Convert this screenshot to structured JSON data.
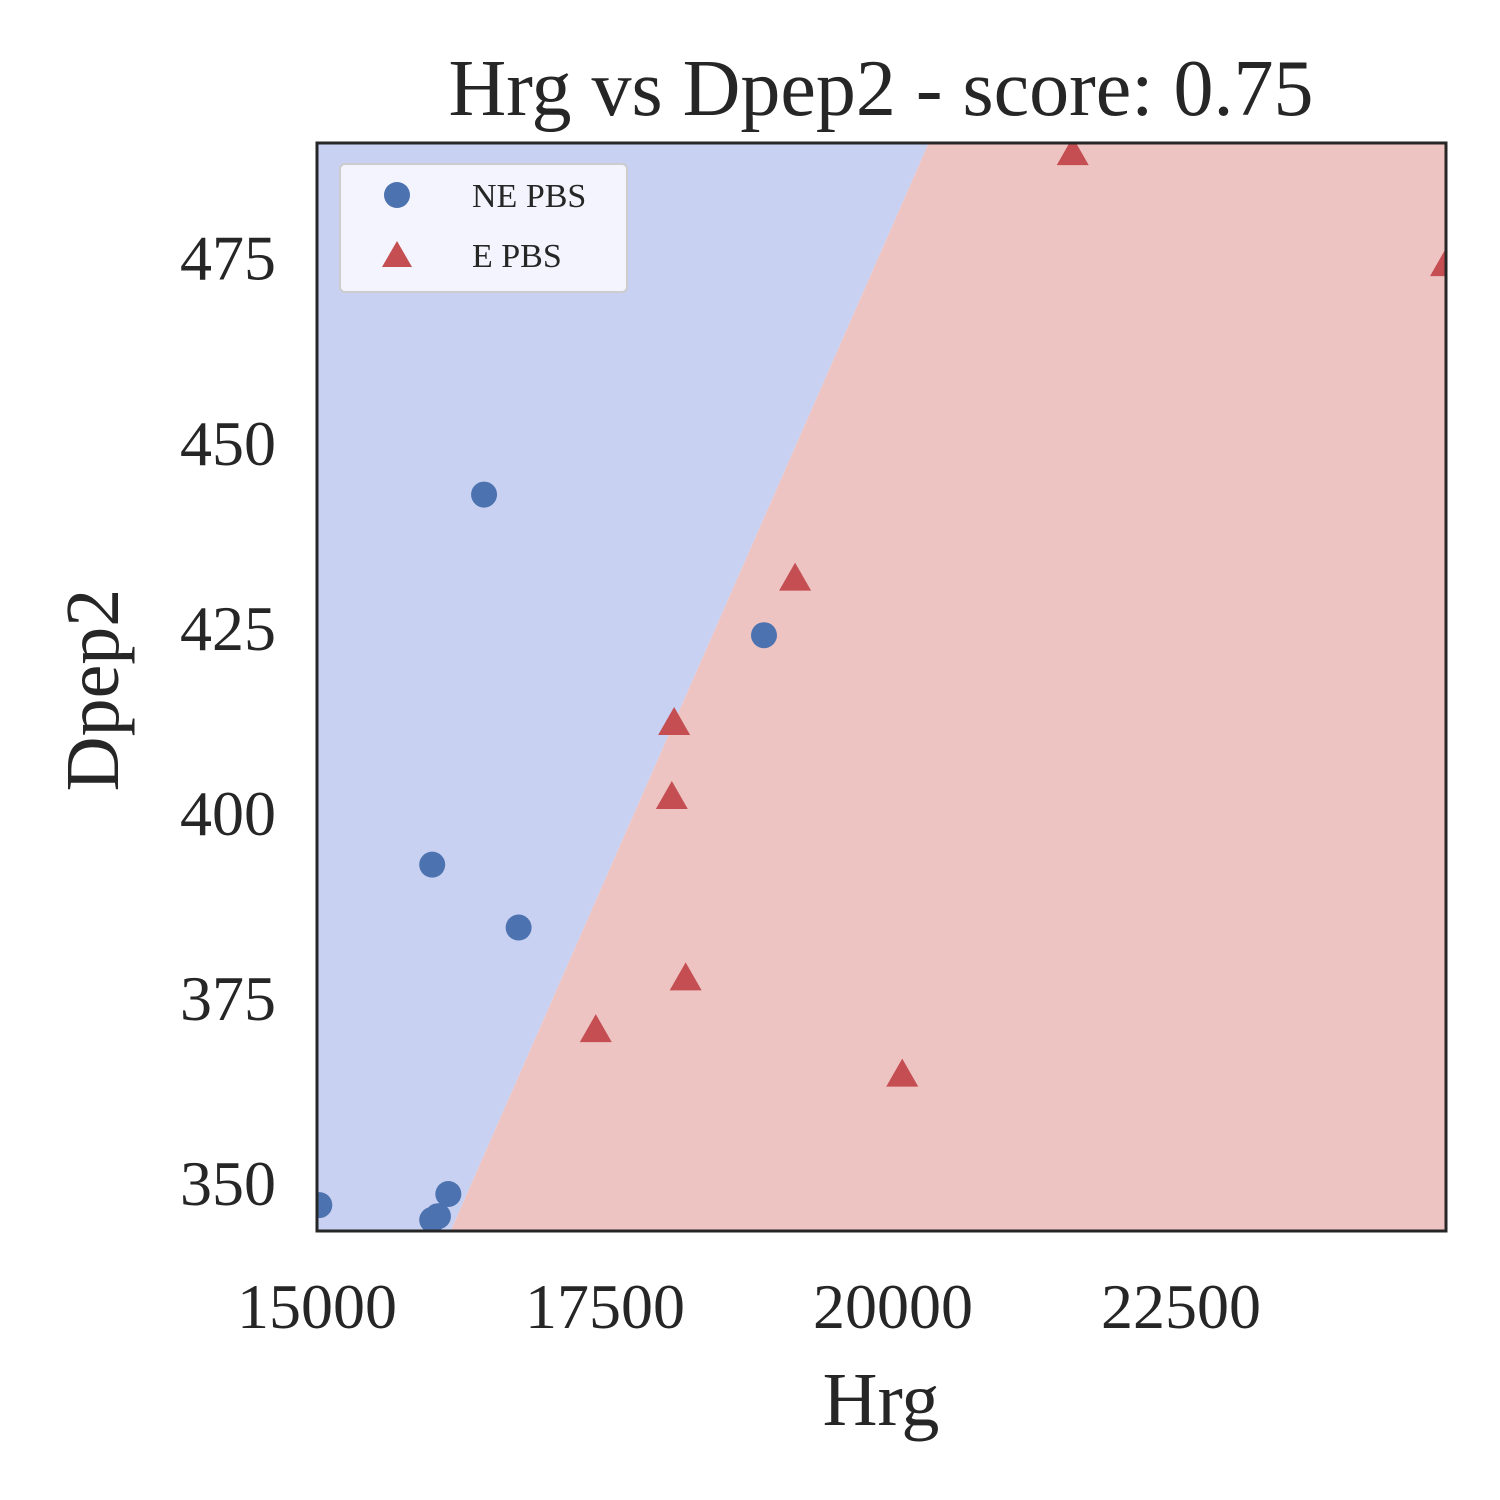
{
  "chart_data": {
    "type": "scatter",
    "title": "Hrg vs Dpep2 - score: 0.75",
    "xlabel": "Hrg",
    "ylabel": "Dpep2",
    "xlim": [
      15000,
      24800
    ],
    "ylim": [
      343.5,
      490.5
    ],
    "xticks": [
      15000,
      17500,
      20000,
      22500
    ],
    "yticks": [
      350,
      375,
      400,
      425,
      450,
      475
    ],
    "xtick_labels": [
      "15000",
      "17500",
      "20000",
      "22500"
    ],
    "ytick_labels": [
      "350",
      "375",
      "400",
      "425",
      "450",
      "475"
    ],
    "grid": false,
    "legend_position": "top-left",
    "decision_regions": {
      "boundary": [
        [
          16160,
          343.5
        ],
        [
          20310,
          490.5
        ]
      ],
      "left_class": "NE PBS",
      "right_class": "E PBS",
      "left_color": "#c8d1f1",
      "right_color": "#eec4c3"
    },
    "series": [
      {
        "name": "NE PBS",
        "marker": "circle",
        "color": "#4c72b0",
        "points": [
          {
            "x": 16450,
            "y": 443.0
          },
          {
            "x": 18880,
            "y": 424.0
          },
          {
            "x": 16000,
            "y": 393.0
          },
          {
            "x": 16750,
            "y": 384.5
          },
          {
            "x": 16140,
            "y": 348.5
          },
          {
            "x": 16050,
            "y": 345.5
          },
          {
            "x": 16000,
            "y": 345.0
          },
          {
            "x": 15020,
            "y": 347.0
          }
        ]
      },
      {
        "name": "E PBS",
        "marker": "triangle",
        "color": "#c44e52",
        "points": [
          {
            "x": 21560,
            "y": 489.0
          },
          {
            "x": 24800,
            "y": 474.0
          },
          {
            "x": 19150,
            "y": 431.5
          },
          {
            "x": 18100,
            "y": 412.0
          },
          {
            "x": 18080,
            "y": 402.0
          },
          {
            "x": 18200,
            "y": 377.5
          },
          {
            "x": 17420,
            "y": 370.5
          },
          {
            "x": 20080,
            "y": 364.5
          }
        ]
      }
    ]
  }
}
